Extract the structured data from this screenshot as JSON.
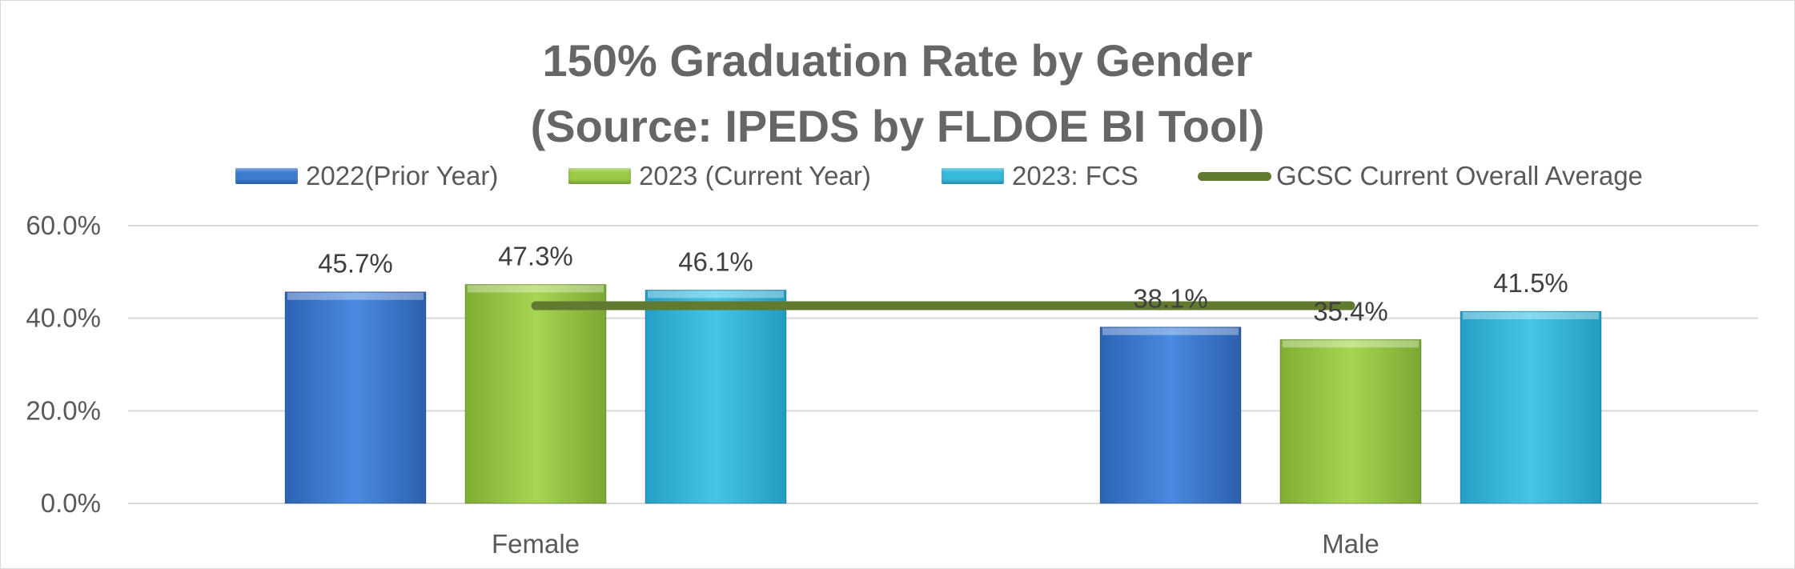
{
  "chart_data": {
    "type": "bar",
    "title": "150% Graduation Rate by Gender",
    "subtitle": "(Source: IPEDS by FLDOE BI Tool)",
    "categories": [
      "Female",
      "Male"
    ],
    "series": [
      {
        "name": "2022(Prior Year)",
        "values": [
          45.7,
          38.1
        ],
        "labels": [
          "45.7%",
          "38.1%"
        ],
        "color": "#3c7bd0"
      },
      {
        "name": "2023 (Current Year)",
        "values": [
          47.3,
          35.4
        ],
        "labels": [
          "47.3%",
          "35.4%"
        ],
        "color": "#9acb45"
      },
      {
        "name": "2023: FCS",
        "values": [
          46.1,
          41.5
        ],
        "labels": [
          "46.1%",
          "41.5%"
        ],
        "color": "#35b9dc"
      }
    ],
    "line_series": {
      "name": "GCSC Current Overall Average",
      "type": "line",
      "values": [
        42.7,
        42.7
      ],
      "color": "#617a30"
    },
    "ylim": [
      0,
      60
    ],
    "yticks": [
      "0.0%",
      "20.0%",
      "40.0%",
      "60.0%"
    ],
    "ytick_values": [
      0,
      20,
      40,
      60
    ],
    "grid": true,
    "legend_position": "top"
  }
}
